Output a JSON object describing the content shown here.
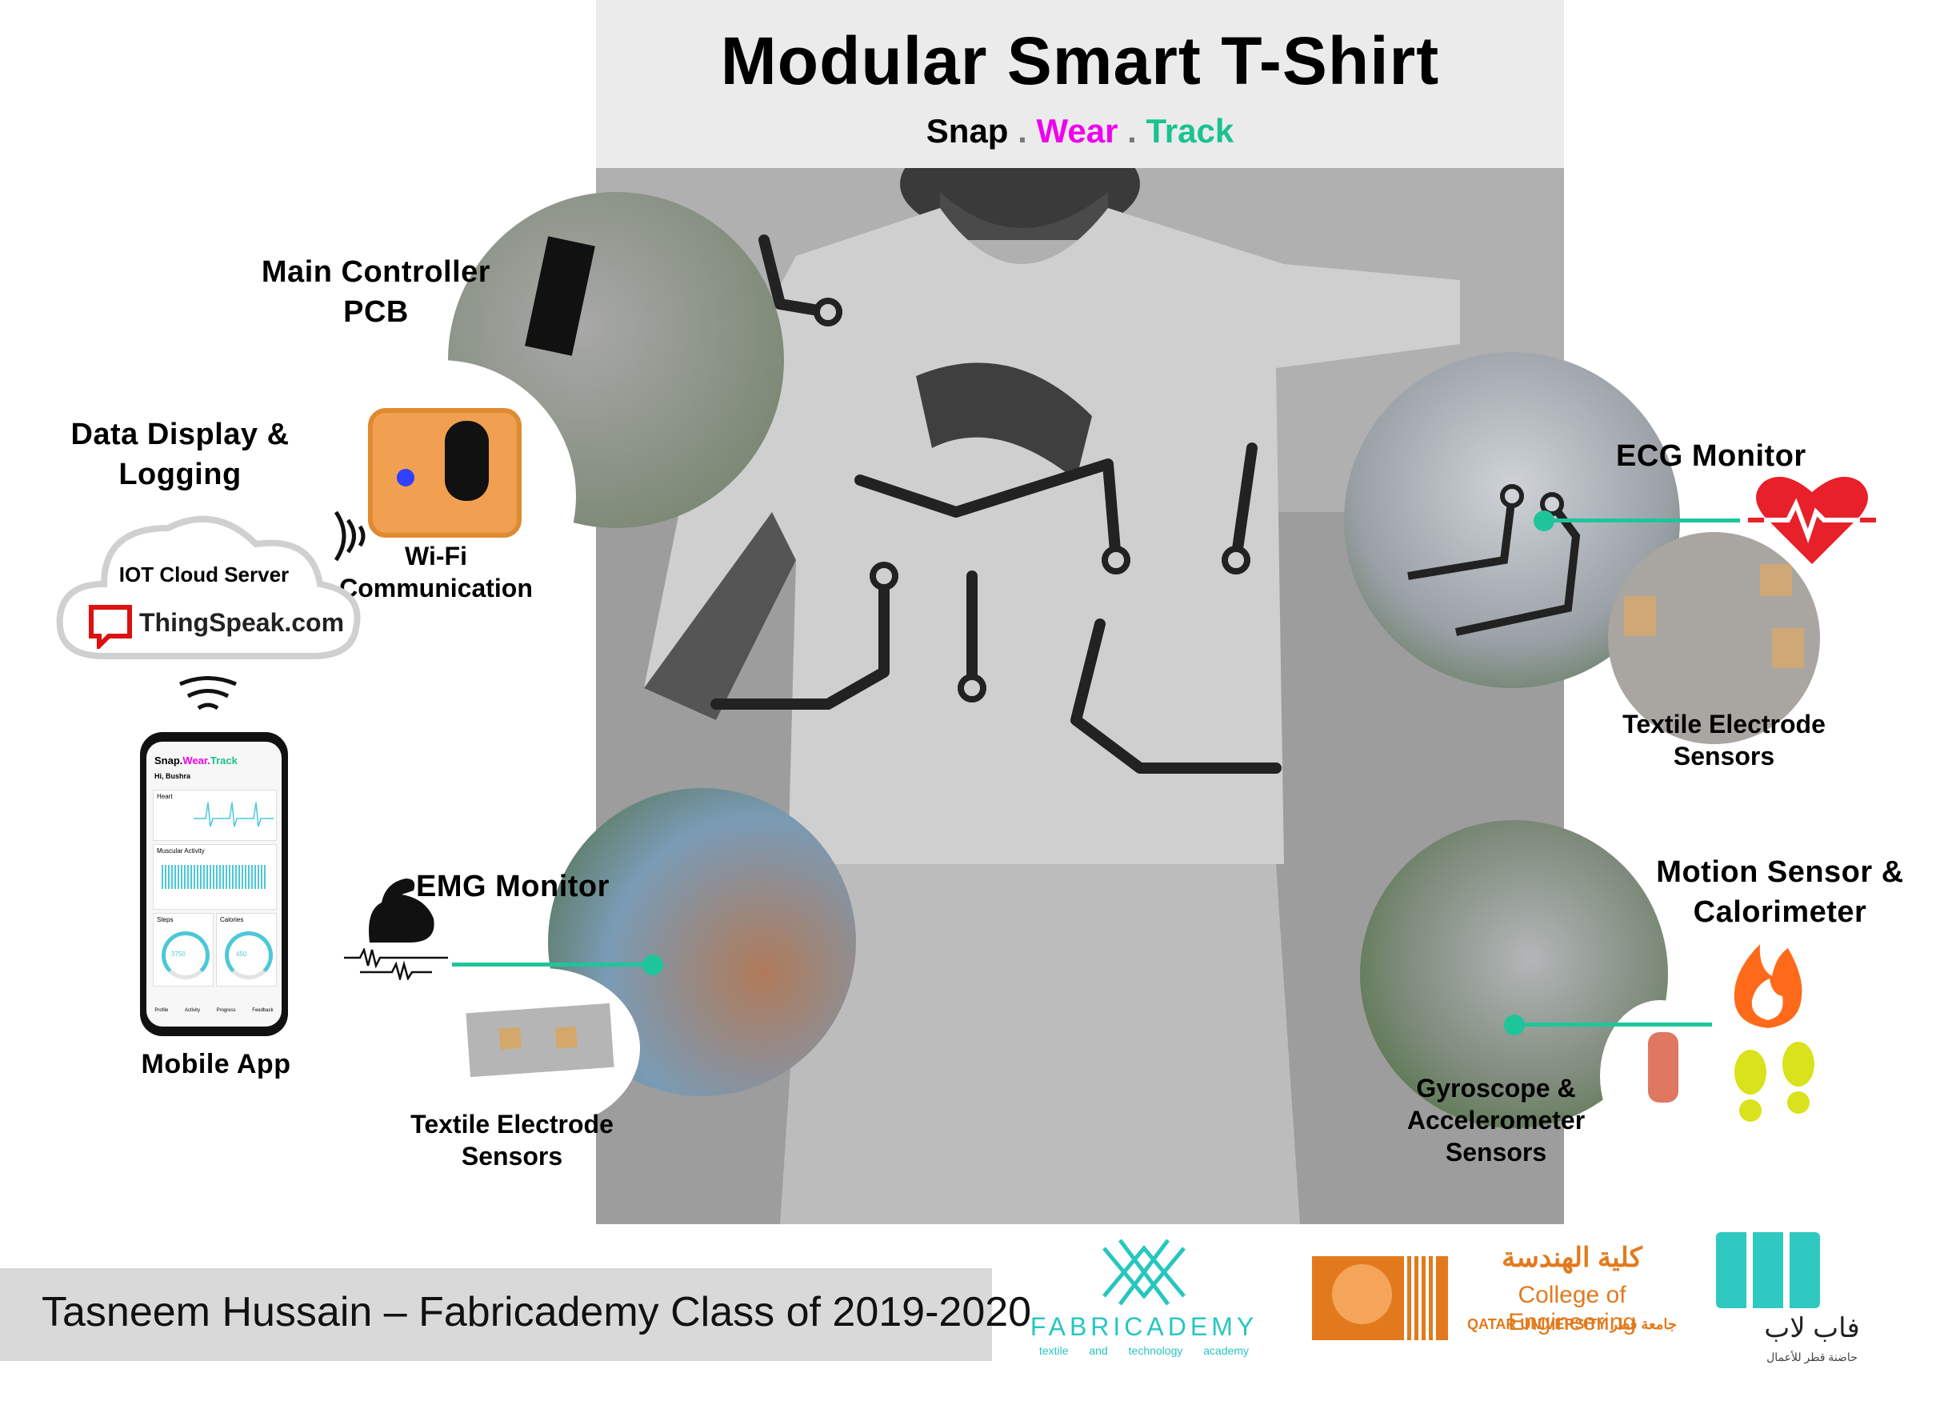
{
  "title": "Modular Smart T-Shirt",
  "tagline": {
    "part1": "Snap",
    "sep1": ".",
    "part2": "Wear",
    "sep2": ".",
    "part3": "Track"
  },
  "colors": {
    "snap": "#000000",
    "wear": "#ee00ee",
    "track": "#19c28e",
    "accent": "#1fc59a",
    "heart": "#e8202a",
    "fire": "#ff6a1a",
    "footprint": "#d9e21a"
  },
  "labels": {
    "main_controller": "Main Controller PCB",
    "data_display": "Data Display & Logging",
    "wifi": "Wi-Fi Communication",
    "iot_server": "IOT Cloud Server",
    "thingspeak": "ThingSpeak.com",
    "mobile_app": "Mobile App",
    "emg_monitor": "EMG Monitor",
    "emg_sensors": "Textile Electrode Sensors",
    "ecg_monitor": "ECG Monitor",
    "ecg_sensors": "Textile Electrode Sensors",
    "motion_sensor": "Motion Sensor & Calorimeter",
    "gyro_sensors": "Gyroscope & Accelerometer Sensors"
  },
  "phone": {
    "app_title_1": "Snap.",
    "app_title_2": "Wear.",
    "app_title_3": "Track",
    "greeting": "Hi, Bushra",
    "heart_card": "Heart",
    "muscle_card": "Muscular Activity",
    "steps_card": "Steps",
    "steps_value": "3750",
    "calories_card": "Calories",
    "calories_value": "450",
    "nav": [
      "Profile",
      "Activity",
      "Progress",
      "Feedback"
    ]
  },
  "footer": "Tasneem Hussain – Fabricademy Class of 2019-2020",
  "logos": {
    "fabricademy_name": "FABRICADEMY",
    "fabricademy_sub": "textile and technology academy",
    "coe_arabic": "كلية الهندسة",
    "coe_english": "College of Engineering",
    "qu_english": "QATAR UNIVERSITY",
    "qu_arabic": "جامعة قطر",
    "fablab_arabic": "فاب لاب",
    "fablab_sub": "حاضنة قطر للأعمال"
  },
  "icons": [
    "wifi-waves-icon",
    "cloud-icon",
    "thingspeak-logo-icon",
    "flexed-arm-icon",
    "emg-signal-icon",
    "heart-pulse-icon",
    "fire-icon",
    "footprints-icon"
  ]
}
